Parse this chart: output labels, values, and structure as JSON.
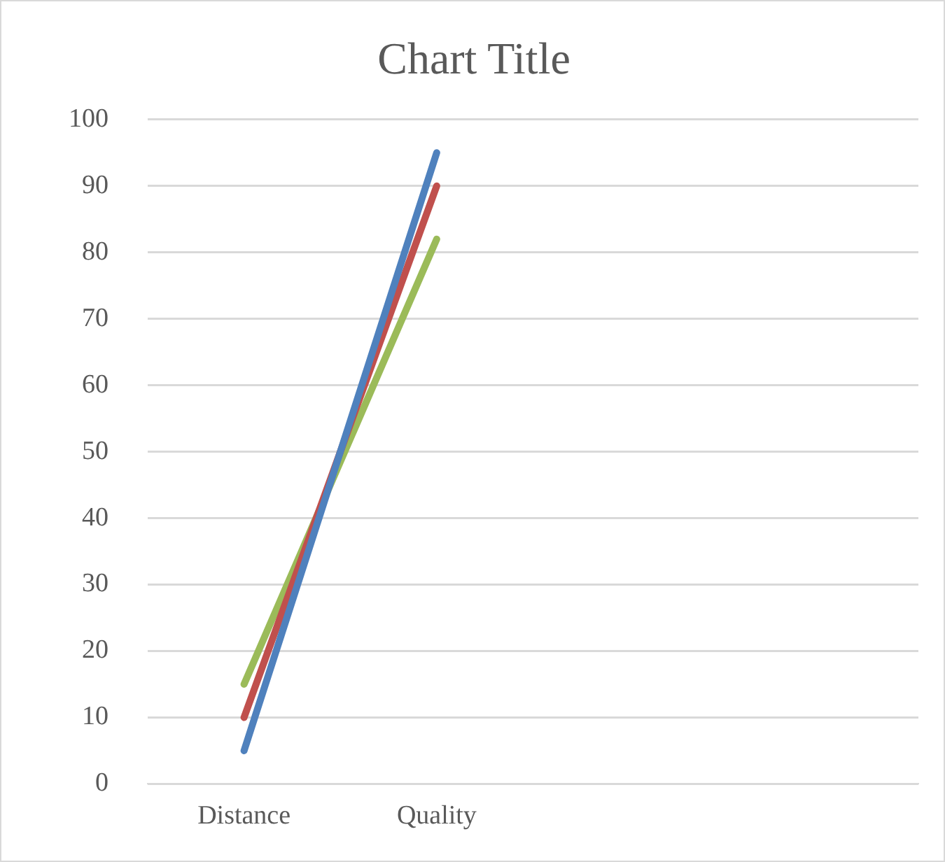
{
  "chart_data": {
    "type": "line",
    "title": "Chart Title",
    "categories": [
      "Distance",
      "Quality",
      null,
      null
    ],
    "series": [
      {
        "color": "#4f81bd",
        "values": [
          5,
          95,
          null,
          null
        ]
      },
      {
        "color": "#c0504d",
        "values": [
          10,
          90,
          null,
          null
        ]
      },
      {
        "color": "#9bbb59",
        "values": [
          15,
          82,
          null,
          null
        ]
      }
    ],
    "ylim": [
      0,
      100
    ],
    "yticks": [
      0,
      10,
      20,
      30,
      40,
      50,
      60,
      70,
      80,
      90,
      100
    ],
    "grid": "y",
    "legend": false,
    "marker": "none",
    "line_style": "solid"
  }
}
